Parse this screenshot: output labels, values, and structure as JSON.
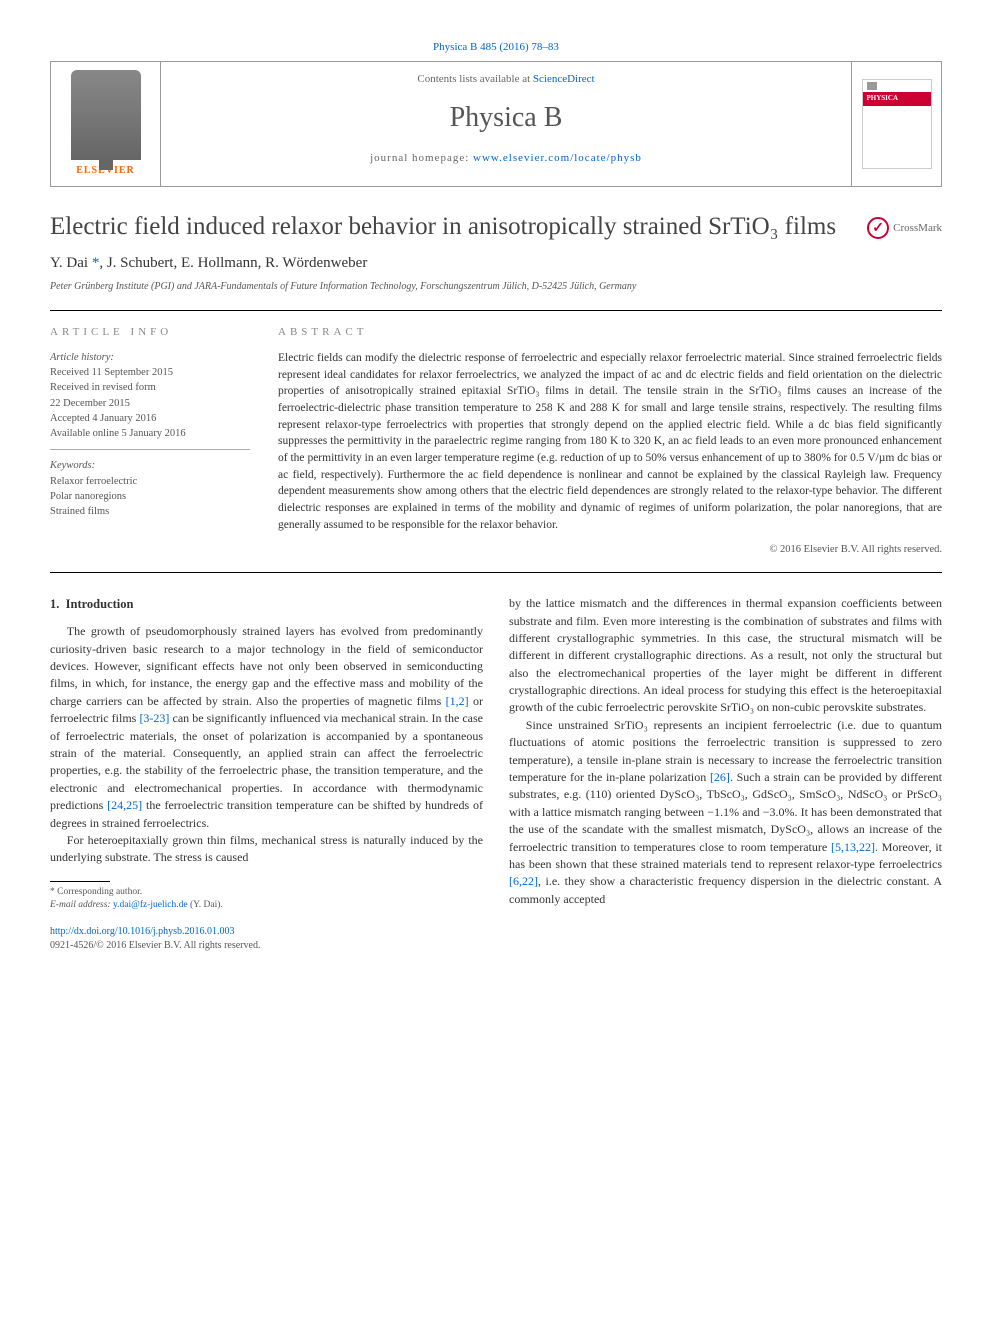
{
  "header": {
    "citation": "Physica B 485 (2016) 78–83",
    "contents_prefix": "Contents lists available at ",
    "contents_link": "ScienceDirect",
    "journal_title": "Physica B",
    "homepage_prefix": "journal homepage: ",
    "homepage_url": "www.elsevier.com/locate/physb",
    "elsevier_label": "ELSEVIER",
    "cover_band": "PHYSICA"
  },
  "crossmark": {
    "label": "CrossMark",
    "glyph": "⬤"
  },
  "article": {
    "title_html": "Electric field induced relaxor behavior in anisotropically strained SrTiO₃ films",
    "authors_html": "Y. Dai *, J. Schubert, E. Hollmann, R. Wördenweber",
    "affiliation": "Peter Grünberg Institute (PGI) and JARA-Fundamentals of Future Information Technology, Forschungszentrum Jülich, D-52425 Jülich, Germany"
  },
  "meta": {
    "info_heading": "ARTICLE INFO",
    "abstract_heading": "ABSTRACT",
    "history_label": "Article history:",
    "history_lines": [
      "Received 11 September 2015",
      "Received in revised form",
      "22 December 2015",
      "Accepted 4 January 2016",
      "Available online 5 January 2016"
    ],
    "keywords_label": "Keywords:",
    "keywords": [
      "Relaxor ferroelectric",
      "Polar nanoregions",
      "Strained films"
    ],
    "abstract": "Electric fields can modify the dielectric response of ferroelectric and especially relaxor ferroelectric material. Since strained ferroelectric fields represent ideal candidates for relaxor ferroelectrics, we analyzed the impact of ac and dc electric fields and field orientation on the dielectric properties of anisotropically strained epitaxial SrTiO₃ films in detail. The tensile strain in the SrTiO₃ films causes an increase of the ferroelectric-dielectric phase transition temperature to 258 K and 288 K for small and large tensile strains, respectively. The resulting films represent relaxor-type ferroelectrics with properties that strongly depend on the applied electric field. While a dc bias field significantly suppresses the permittivity in the paraelectric regime ranging from 180 K to 320 K, an ac field leads to an even more pronounced enhancement of the permittivity in an even larger temperature regime (e.g. reduction of up to 50% versus enhancement of up to 380% for 0.5 V/µm dc bias or ac field, respectively). Furthermore the ac field dependence is nonlinear and cannot be explained by the classical Rayleigh law. Frequency dependent measurements show among others that the electric field dependences are strongly related to the relaxor-type behavior. The different dielectric responses are explained in terms of the mobility and dynamic of regimes of uniform polarization, the polar nanoregions, that are generally assumed to be responsible for the relaxor behavior.",
    "copyright": "© 2016 Elsevier B.V. All rights reserved."
  },
  "body": {
    "section_number": "1.",
    "section_title": "Introduction",
    "p1_a": "The growth of pseudomorphously strained layers has evolved from predominantly curiosity-driven basic research to a major technology in the field of semiconductor devices. However, significant effects have not only been observed in semiconducting films, in which, for instance, the energy gap and the effective mass and mobility of the charge carriers can be affected by strain. Also the properties of magnetic films ",
    "ref1": "[1,2]",
    "p1_b": " or ferroelectric films ",
    "ref2": "[3-23]",
    "p1_c": " can be significantly influenced via mechanical strain. In the case of ferroelectric materials, the onset of polarization is accompanied by a spontaneous strain of the material. Consequently, an applied strain can affect the ferroelectric properties, e.g. the stability of the ferroelectric phase, the transition temperature, and the electronic and electromechanical properties. In accordance with thermodynamic predictions ",
    "ref3": "[24,25]",
    "p1_d": " the ferroelectric transition temperature can be shifted by hundreds of degrees in strained ferroelectrics.",
    "p2": "For heteroepitaxially grown thin films, mechanical stress is naturally induced by the underlying substrate. The stress is caused",
    "p3": "by the lattice mismatch and the differences in thermal expansion coefficients between substrate and film. Even more interesting is the combination of substrates and films with different crystallographic symmetries. In this case, the structural mismatch will be different in different crystallographic directions. As a result, not only the structural but also the electromechanical properties of the layer might be different in different crystallographic directions. An ideal process for studying this effect is the heteroepitaxial growth of the cubic ferroelectric perovskite SrTiO₃ on non-cubic perovskite substrates.",
    "p4_a": "Since unstrained SrTiO₃ represents an incipient ferroelectric (i.e. due to quantum fluctuations of atomic positions the ferroelectric transition is suppressed to zero temperature), a tensile in-plane strain is necessary to increase the ferroelectric transition temperature for the in-plane polarization ",
    "ref4": "[26]",
    "p4_b": ". Such a strain can be provided by different substrates, e.g. (110) oriented DyScO₃, TbScO₃, GdScO₃, SmScO₃, NdScO₃ or PrScO₃ with a lattice mismatch ranging between −1.1% and −3.0%. It has been demonstrated that the use of the scandate with the smallest mismatch, DyScO₃, allows an increase of the ferroelectric transition to temperatures close to room temperature ",
    "ref5": "[5,13,22]",
    "p4_c": ". Moreover, it has been shown that these strained materials tend to represent relaxor-type ferroelectrics ",
    "ref6": "[6,22]",
    "p4_d": ", i.e. they show a characteristic frequency dispersion in the dielectric constant. A commonly accepted"
  },
  "footer": {
    "corr_label": "* Corresponding author.",
    "email_label": "E-mail address: ",
    "email": "y.dai@fz-juelich.de",
    "email_suffix": " (Y. Dai).",
    "doi": "http://dx.doi.org/10.1016/j.physb.2016.01.003",
    "issn": "0921-4526/© 2016 Elsevier B.V. All rights reserved."
  },
  "colors": {
    "link": "#0066cc",
    "elsevier_orange": "#ff6600",
    "crossmark_red": "#cc0033"
  }
}
